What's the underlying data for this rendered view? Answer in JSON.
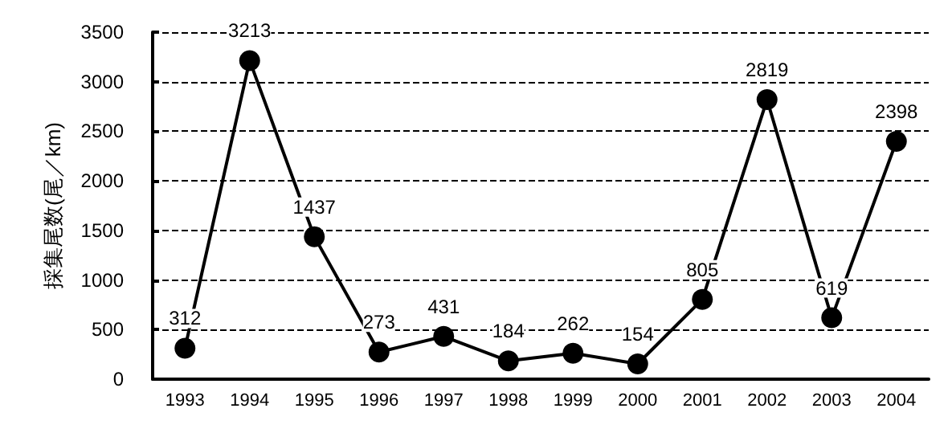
{
  "chart_data": {
    "type": "line",
    "ylabel": "採集尾数(尾／km)",
    "categories": [
      "1993",
      "1994",
      "1995",
      "1996",
      "1997",
      "1998",
      "1999",
      "2000",
      "2001",
      "2002",
      "2003",
      "2004"
    ],
    "series": [
      {
        "color": "#000000",
        "values": [
          312,
          3213,
          1437,
          273,
          431,
          184,
          262,
          154,
          805,
          2819,
          619,
          2398
        ]
      }
    ],
    "ylim": [
      0,
      3500
    ],
    "yticks": [
      0,
      500,
      1000,
      1500,
      2000,
      2500,
      3000,
      3500
    ],
    "grid": "y",
    "marker": "circle",
    "line_style": "solid",
    "data_labels": true
  }
}
